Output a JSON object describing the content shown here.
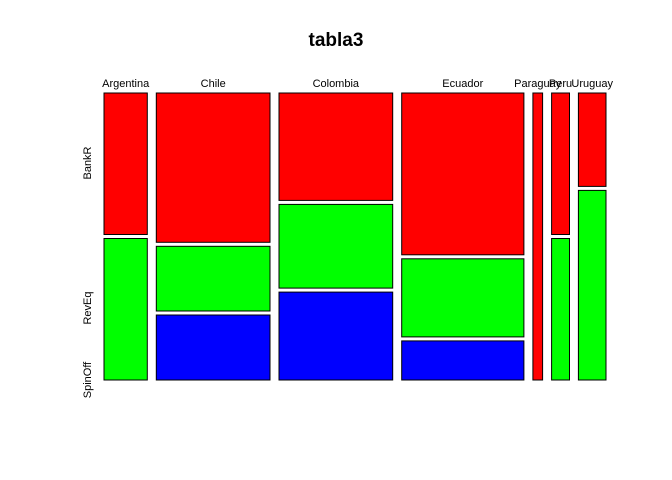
{
  "chart_data": {
    "type": "mosaic",
    "title": "tabla3",
    "xlabel": "",
    "ylabel": "",
    "categories": [
      "Argentina",
      "Chile",
      "Colombia",
      "Ecuador",
      "Paraguay",
      "Peru",
      "Uruguay"
    ],
    "levels": [
      "BankR",
      "RevEq",
      "SpinOff"
    ],
    "colors": {
      "BankR": "#ff0000",
      "RevEq": "#00ff00",
      "SpinOff": "#0000ff"
    },
    "column_widths": [
      0.0655,
      0.1719,
      0.1719,
      0.1848,
      0.0146,
      0.027,
      0.0417
    ],
    "proportions": [
      {
        "country": "Argentina",
        "BankR": 0.5,
        "RevEq": 0.5,
        "SpinOff": 0.0
      },
      {
        "country": "Chile",
        "BankR": 0.535,
        "RevEq": 0.232,
        "SpinOff": 0.233
      },
      {
        "country": "Colombia",
        "BankR": 0.385,
        "RevEq": 0.3,
        "SpinOff": 0.315
      },
      {
        "country": "Ecuador",
        "BankR": 0.58,
        "RevEq": 0.28,
        "SpinOff": 0.14
      },
      {
        "country": "Paraguay",
        "BankR": 1.0,
        "RevEq": 0.0,
        "SpinOff": 0.0
      },
      {
        "country": "Peru",
        "BankR": 0.5,
        "RevEq": 0.5,
        "SpinOff": 0.0
      },
      {
        "country": "Uruguay",
        "BankR": 0.33,
        "RevEq": 0.67,
        "SpinOff": 0.0
      }
    ],
    "legend": "none",
    "grid": false
  }
}
